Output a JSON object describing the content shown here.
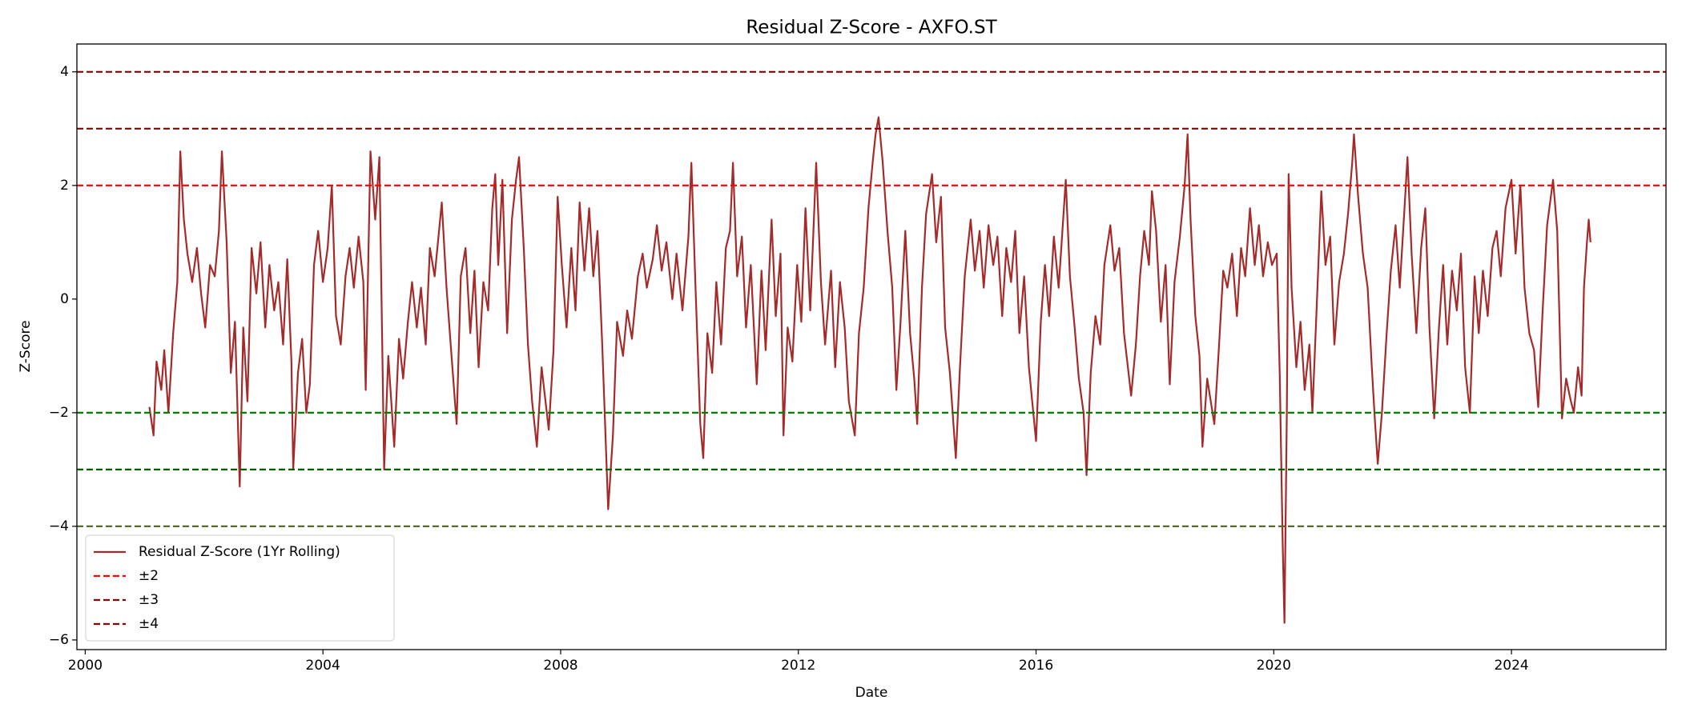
{
  "chart_data": {
    "type": "line",
    "title": "Residual Z-Score - AXFO.ST",
    "xlabel": "Date",
    "ylabel": "Z-Score",
    "xlim": [
      1999.86,
      2026.6
    ],
    "ylim": [
      -6.17,
      4.49
    ],
    "xticks": [
      2000,
      2004,
      2008,
      2012,
      2016,
      2020,
      2024
    ],
    "yticks": [
      {
        "value": -6,
        "label": "−6"
      },
      {
        "value": -4,
        "label": "−4"
      },
      {
        "value": -2,
        "label": "−2"
      },
      0,
      2,
      4
    ],
    "grid": false,
    "legend": "lower left",
    "series": [
      {
        "name": "Residual Z-Score (1Yr Rolling)",
        "color": "#a52a2a",
        "x": [
          2001.08,
          2001.15,
          2001.2,
          2001.28,
          2001.33,
          2001.4,
          2001.48,
          2001.55,
          2001.6,
          2001.66,
          2001.72,
          2001.8,
          2001.88,
          2001.95,
          2002.02,
          2002.1,
          2002.18,
          2002.25,
          2002.3,
          2002.38,
          2002.45,
          2002.52,
          2002.6,
          2002.66,
          2002.73,
          2002.8,
          2002.88,
          2002.95,
          2003.03,
          2003.1,
          2003.18,
          2003.25,
          2003.33,
          2003.4,
          2003.47,
          2003.5,
          2003.58,
          2003.65,
          2003.72,
          2003.78,
          2003.85,
          2003.92,
          2004.0,
          2004.08,
          2004.15,
          2004.22,
          2004.3,
          2004.38,
          2004.45,
          2004.52,
          2004.6,
          2004.68,
          2004.72,
          2004.8,
          2004.88,
          2004.95,
          2005.03,
          2005.1,
          2005.2,
          2005.28,
          2005.35,
          2005.43,
          2005.5,
          2005.58,
          2005.65,
          2005.73,
          2005.8,
          2005.88,
          2006.0,
          2006.08,
          2006.15,
          2006.25,
          2006.32,
          2006.4,
          2006.48,
          2006.55,
          2006.62,
          2006.7,
          2006.78,
          2006.85,
          2006.9,
          2006.95,
          2007.02,
          2007.1,
          2007.18,
          2007.25,
          2007.3,
          2007.38,
          2007.45,
          2007.52,
          2007.6,
          2007.68,
          2007.8,
          2007.88,
          2007.95,
          2008.02,
          2008.1,
          2008.18,
          2008.25,
          2008.32,
          2008.4,
          2008.48,
          2008.55,
          2008.62,
          2008.7,
          2008.8,
          2008.88,
          2008.95,
          2009.05,
          2009.12,
          2009.2,
          2009.3,
          2009.38,
          2009.45,
          2009.55,
          2009.62,
          2009.7,
          2009.78,
          2009.88,
          2009.95,
          2010.05,
          2010.15,
          2010.2,
          2010.27,
          2010.35,
          2010.4,
          2010.47,
          2010.55,
          2010.62,
          2010.7,
          2010.78,
          2010.85,
          2010.9,
          2010.97,
          2011.05,
          2011.12,
          2011.2,
          2011.3,
          2011.38,
          2011.45,
          2011.55,
          2011.62,
          2011.7,
          2011.75,
          2011.82,
          2011.9,
          2011.98,
          2012.05,
          2012.12,
          2012.2,
          2012.3,
          2012.38,
          2012.45,
          2012.55,
          2012.62,
          2012.7,
          2012.78,
          2012.85,
          2012.95,
          2013.02,
          2013.1,
          2013.18,
          2013.25,
          2013.3,
          2013.35,
          2013.42,
          2013.5,
          2013.58,
          2013.65,
          2013.72,
          2013.8,
          2013.88,
          2013.95,
          2014.0,
          2014.08,
          2014.15,
          2014.25,
          2014.32,
          2014.4,
          2014.47,
          2014.55,
          2014.65,
          2014.72,
          2014.8,
          2014.9,
          2014.97,
          2015.05,
          2015.12,
          2015.2,
          2015.28,
          2015.35,
          2015.43,
          2015.5,
          2015.58,
          2015.65,
          2015.72,
          2015.8,
          2015.88,
          2016.0,
          2016.08,
          2016.15,
          2016.22,
          2016.3,
          2016.38,
          2016.45,
          2016.5,
          2016.57,
          2016.65,
          2016.72,
          2016.8,
          2016.85,
          2016.92,
          2017.0,
          2017.08,
          2017.15,
          2017.25,
          2017.32,
          2017.4,
          2017.48,
          2017.6,
          2017.68,
          2017.75,
          2017.82,
          2017.9,
          2017.95,
          2018.02,
          2018.1,
          2018.18,
          2018.25,
          2018.33,
          2018.42,
          2018.5,
          2018.55,
          2018.6,
          2018.68,
          2018.75,
          2018.8,
          2018.88,
          2019.0,
          2019.08,
          2019.15,
          2019.22,
          2019.3,
          2019.38,
          2019.45,
          2019.52,
          2019.6,
          2019.68,
          2019.75,
          2019.82,
          2019.9,
          2019.97,
          2020.05,
          2020.1,
          2020.15,
          2020.18,
          2020.22,
          2020.25,
          2020.3,
          2020.38,
          2020.45,
          2020.52,
          2020.6,
          2020.65,
          2020.72,
          2020.8,
          2020.87,
          2020.95,
          2021.02,
          2021.1,
          2021.18,
          2021.25,
          2021.32,
          2021.35,
          2021.42,
          2021.5,
          2021.58,
          2021.65,
          2021.7,
          2021.75,
          2021.82,
          2021.9,
          2021.97,
          2022.05,
          2022.12,
          2022.2,
          2022.25,
          2022.32,
          2022.4,
          2022.48,
          2022.55,
          2022.62,
          2022.7,
          2022.78,
          2022.85,
          2022.92,
          2023.0,
          2023.08,
          2023.15,
          2023.22,
          2023.3,
          2023.38,
          2023.45,
          2023.52,
          2023.6,
          2023.68,
          2023.75,
          2023.82,
          2023.9,
          2024.0,
          2024.07,
          2024.15,
          2024.22,
          2024.3,
          2024.38,
          2024.45,
          2024.52,
          2024.6,
          2024.7,
          2024.77,
          2024.85,
          2024.92,
          2025.0,
          2025.05,
          2025.12,
          2025.18,
          2025.22,
          2025.27,
          2025.3,
          2025.33
        ],
        "values": [
          -1.9,
          -2.4,
          -1.1,
          -1.6,
          -0.9,
          -2.0,
          -0.6,
          0.3,
          2.6,
          1.4,
          0.8,
          0.3,
          0.9,
          0.1,
          -0.5,
          0.6,
          0.4,
          1.2,
          2.6,
          1.0,
          -1.3,
          -0.4,
          -3.3,
          -0.5,
          -1.8,
          0.9,
          0.1,
          1.0,
          -0.5,
          0.6,
          -0.2,
          0.3,
          -0.8,
          0.7,
          -1.1,
          -3.0,
          -1.3,
          -0.7,
          -2.0,
          -1.5,
          0.6,
          1.2,
          0.3,
          0.9,
          2.0,
          -0.3,
          -0.8,
          0.4,
          0.9,
          0.2,
          1.1,
          0.3,
          -1.6,
          2.6,
          1.4,
          2.5,
          -3.0,
          -1.0,
          -2.6,
          -0.7,
          -1.4,
          -0.4,
          0.3,
          -0.5,
          0.2,
          -0.8,
          0.9,
          0.4,
          1.7,
          0.2,
          -0.8,
          -2.2,
          0.4,
          0.9,
          -0.6,
          0.5,
          -1.2,
          0.3,
          -0.2,
          1.6,
          2.2,
          0.6,
          2.1,
          -0.6,
          1.4,
          2.1,
          2.5,
          0.9,
          -0.8,
          -1.8,
          -2.6,
          -1.2,
          -2.3,
          -0.9,
          1.8,
          0.6,
          -0.5,
          0.9,
          -0.2,
          1.7,
          0.5,
          1.6,
          0.4,
          1.2,
          -0.8,
          -3.7,
          -2.4,
          -0.4,
          -1.0,
          -0.2,
          -0.7,
          0.4,
          0.8,
          0.2,
          0.7,
          1.3,
          0.5,
          1.0,
          0.0,
          0.8,
          -0.2,
          1.1,
          2.4,
          0.2,
          -2.2,
          -2.8,
          -0.6,
          -1.3,
          0.3,
          -0.8,
          0.9,
          1.2,
          2.4,
          0.4,
          1.1,
          -0.5,
          0.6,
          -1.5,
          0.5,
          -0.9,
          1.4,
          -0.3,
          0.8,
          -2.4,
          -0.5,
          -1.1,
          0.6,
          -0.4,
          1.6,
          -0.2,
          2.4,
          0.3,
          -0.8,
          0.5,
          -1.2,
          0.3,
          -0.5,
          -1.8,
          -2.4,
          -0.6,
          0.2,
          1.6,
          2.4,
          2.9,
          3.2,
          2.4,
          1.2,
          0.2,
          -1.6,
          -0.4,
          1.2,
          -0.6,
          -1.4,
          -2.2,
          0.2,
          1.5,
          2.2,
          1.0,
          1.8,
          -0.5,
          -1.3,
          -2.8,
          -1.2,
          0.4,
          1.4,
          0.5,
          1.2,
          0.2,
          1.3,
          0.6,
          1.1,
          -0.3,
          0.9,
          0.3,
          1.2,
          -0.6,
          0.4,
          -1.2,
          -2.5,
          -0.4,
          0.6,
          -0.3,
          1.1,
          0.2,
          1.3,
          2.1,
          0.4,
          -0.5,
          -1.4,
          -2.0,
          -3.1,
          -1.3,
          -0.3,
          -0.8,
          0.6,
          1.3,
          0.5,
          0.9,
          -0.6,
          -1.7,
          -0.8,
          0.4,
          1.2,
          0.6,
          1.9,
          1.2,
          -0.4,
          0.6,
          -1.5,
          0.3,
          1.1,
          2.0,
          2.9,
          1.4,
          -0.3,
          -1.0,
          -2.6,
          -1.4,
          -2.2,
          -0.8,
          0.5,
          0.2,
          0.8,
          -0.3,
          0.9,
          0.4,
          1.6,
          0.6,
          1.3,
          0.4,
          1.0,
          0.6,
          0.8,
          -1.3,
          -4.3,
          -5.7,
          -2.0,
          2.2,
          0.2,
          -1.2,
          -0.4,
          -1.6,
          -0.8,
          -2.0,
          -0.2,
          1.9,
          0.6,
          1.1,
          -0.8,
          0.3,
          0.8,
          1.5,
          2.4,
          2.9,
          1.8,
          0.8,
          0.2,
          -1.2,
          -2.1,
          -2.9,
          -2.0,
          -0.6,
          0.5,
          1.3,
          0.2,
          1.6,
          2.5,
          0.8,
          -0.6,
          0.9,
          1.6,
          -0.5,
          -2.1,
          -0.5,
          0.6,
          -0.8,
          0.5,
          -0.2,
          0.8,
          -1.2,
          -2.0,
          0.4,
          -0.6,
          0.5,
          -0.3,
          0.9,
          1.2,
          0.4,
          1.6,
          2.1,
          0.8,
          2.0,
          0.2,
          -0.6,
          -0.9,
          -1.9,
          -0.3,
          1.3,
          2.1,
          1.2,
          -2.1,
          -1.4,
          -1.8,
          -2.0,
          -1.2,
          -1.7,
          0.2,
          1.0,
          1.4,
          1.0
        ]
      }
    ],
    "thresholds": [
      {
        "name": "±2",
        "lines": [
          {
            "value": 2,
            "color": "#ff0000"
          },
          {
            "value": -2,
            "color": "#008000"
          }
        ]
      },
      {
        "name": "±3",
        "lines": [
          {
            "value": 3,
            "color": "#8b0000"
          },
          {
            "value": -3,
            "color": "#006400"
          }
        ]
      },
      {
        "name": "±4",
        "lines": [
          {
            "value": 4,
            "color": "#8b0000"
          },
          {
            "value": -4,
            "color": "#556b2f"
          }
        ]
      }
    ]
  }
}
